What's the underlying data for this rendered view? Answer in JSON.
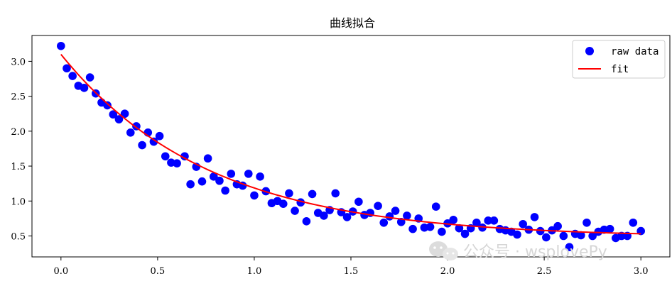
{
  "chart_data": {
    "type": "scatter",
    "title": "曲线拟合",
    "xlabel": "",
    "ylabel": "",
    "xlim": [
      -0.15,
      3.15
    ],
    "ylim": [
      0.2,
      3.37
    ],
    "xticks": [
      0.0,
      0.5,
      1.0,
      1.5,
      2.0,
      2.5,
      3.0
    ],
    "xtick_labels": [
      "0.0",
      "0.5",
      "1.0",
      "1.5",
      "2.0",
      "2.5",
      "3.0"
    ],
    "yticks": [
      0.5,
      1.0,
      1.5,
      2.0,
      2.5,
      3.0
    ],
    "ytick_labels": [
      "0.5",
      "1.0",
      "1.5",
      "2.0",
      "2.5",
      "3.0"
    ],
    "grid": false,
    "legend": {
      "position": "top-right",
      "entries": [
        "raw data",
        "fit"
      ]
    },
    "series": [
      {
        "name": "raw data",
        "kind": "scatter",
        "color": "#0000ff",
        "points": [
          [
            0.0,
            3.22
          ],
          [
            0.03,
            2.9
          ],
          [
            0.06,
            2.79
          ],
          [
            0.09,
            2.65
          ],
          [
            0.12,
            2.62
          ],
          [
            0.15,
            2.77
          ],
          [
            0.18,
            2.54
          ],
          [
            0.21,
            2.41
          ],
          [
            0.24,
            2.37
          ],
          [
            0.27,
            2.24
          ],
          [
            0.3,
            2.17
          ],
          [
            0.33,
            2.25
          ],
          [
            0.36,
            1.98
          ],
          [
            0.39,
            2.07
          ],
          [
            0.42,
            1.8
          ],
          [
            0.45,
            1.98
          ],
          [
            0.48,
            1.85
          ],
          [
            0.51,
            1.93
          ],
          [
            0.54,
            1.64
          ],
          [
            0.57,
            1.55
          ],
          [
            0.6,
            1.54
          ],
          [
            0.64,
            1.64
          ],
          [
            0.67,
            1.24
          ],
          [
            0.7,
            1.49
          ],
          [
            0.73,
            1.28
          ],
          [
            0.76,
            1.61
          ],
          [
            0.79,
            1.35
          ],
          [
            0.82,
            1.29
          ],
          [
            0.85,
            1.15
          ],
          [
            0.88,
            1.39
          ],
          [
            0.91,
            1.24
          ],
          [
            0.94,
            1.22
          ],
          [
            0.97,
            1.39
          ],
          [
            1.0,
            1.08
          ],
          [
            1.03,
            1.35
          ],
          [
            1.06,
            1.14
          ],
          [
            1.09,
            0.97
          ],
          [
            1.12,
            1.0
          ],
          [
            1.15,
            0.96
          ],
          [
            1.18,
            1.11
          ],
          [
            1.21,
            0.86
          ],
          [
            1.24,
            0.98
          ],
          [
            1.27,
            0.71
          ],
          [
            1.3,
            1.1
          ],
          [
            1.33,
            0.83
          ],
          [
            1.36,
            0.79
          ],
          [
            1.39,
            0.87
          ],
          [
            1.42,
            1.11
          ],
          [
            1.45,
            0.84
          ],
          [
            1.48,
            0.77
          ],
          [
            1.51,
            0.85
          ],
          [
            1.54,
            0.99
          ],
          [
            1.57,
            0.8
          ],
          [
            1.6,
            0.83
          ],
          [
            1.64,
            0.93
          ],
          [
            1.67,
            0.69
          ],
          [
            1.7,
            0.78
          ],
          [
            1.73,
            0.86
          ],
          [
            1.76,
            0.7
          ],
          [
            1.79,
            0.79
          ],
          [
            1.82,
            0.6
          ],
          [
            1.85,
            0.75
          ],
          [
            1.88,
            0.62
          ],
          [
            1.91,
            0.63
          ],
          [
            1.94,
            0.92
          ],
          [
            1.97,
            0.56
          ],
          [
            2.0,
            0.68
          ],
          [
            2.03,
            0.73
          ],
          [
            2.06,
            0.61
          ],
          [
            2.09,
            0.53
          ],
          [
            2.12,
            0.61
          ],
          [
            2.15,
            0.69
          ],
          [
            2.18,
            0.62
          ],
          [
            2.21,
            0.72
          ],
          [
            2.24,
            0.72
          ],
          [
            2.27,
            0.6
          ],
          [
            2.3,
            0.58
          ],
          [
            2.33,
            0.56
          ],
          [
            2.36,
            0.52
          ],
          [
            2.39,
            0.67
          ],
          [
            2.42,
            0.59
          ],
          [
            2.45,
            0.77
          ],
          [
            2.48,
            0.57
          ],
          [
            2.51,
            0.48
          ],
          [
            2.54,
            0.58
          ],
          [
            2.57,
            0.64
          ],
          [
            2.6,
            0.5
          ],
          [
            2.63,
            0.34
          ],
          [
            2.66,
            0.53
          ],
          [
            2.69,
            0.51
          ],
          [
            2.72,
            0.69
          ],
          [
            2.75,
            0.5
          ],
          [
            2.78,
            0.56
          ],
          [
            2.81,
            0.59
          ],
          [
            2.84,
            0.6
          ],
          [
            2.87,
            0.47
          ],
          [
            2.9,
            0.5
          ],
          [
            2.93,
            0.5
          ],
          [
            2.96,
            0.69
          ],
          [
            3.0,
            0.57
          ]
        ]
      },
      {
        "name": "fit",
        "kind": "line",
        "color": "#ff0000",
        "function": {
          "form": "a*exp(-b*x)+c",
          "a": 2.62,
          "b": 1.31,
          "c": 0.48
        },
        "x_range": [
          0.0,
          3.0
        ]
      }
    ]
  },
  "watermark": {
    "text": "公众号 · wsplovePy",
    "icon": "wechat-icon",
    "color": "#d6d6d6"
  }
}
